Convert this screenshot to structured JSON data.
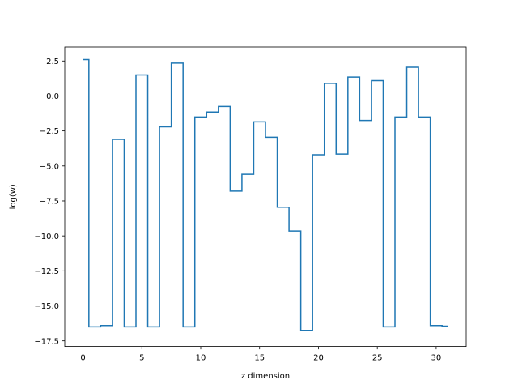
{
  "chart_data": {
    "type": "line",
    "drawstyle": "steps-mid",
    "title": "",
    "xlabel": "z dimension",
    "ylabel": "log(w)",
    "xlim": [
      -1.55,
      32.55
    ],
    "ylim": [
      -17.9,
      3.5
    ],
    "xticks": [
      0,
      5,
      10,
      15,
      20,
      25,
      30
    ],
    "xtick_labels": [
      "0",
      "5",
      "10",
      "15",
      "20",
      "25",
      "30"
    ],
    "yticks": [
      2.5,
      0.0,
      -2.5,
      -5.0,
      -7.5,
      -10.0,
      -12.5,
      -15.0,
      -17.5
    ],
    "ytick_labels": [
      "2.5",
      "0.0",
      "−2.5",
      "−5.0",
      "−7.5",
      "−10.0",
      "−12.5",
      "−15.0",
      "−17.5"
    ],
    "grid": false,
    "legend": "none",
    "series": [
      {
        "color": "#1f77b4",
        "x": [
          0,
          1,
          2,
          3,
          4,
          5,
          6,
          7,
          8,
          9,
          10,
          11,
          12,
          13,
          14,
          15,
          16,
          17,
          18,
          19,
          20,
          21,
          22,
          23,
          24,
          25,
          26,
          27,
          28,
          29,
          30,
          31
        ],
        "values": [
          2.6,
          -16.5,
          -16.4,
          -3.1,
          -16.5,
          1.5,
          -16.5,
          -2.2,
          2.35,
          -16.5,
          -1.5,
          -1.15,
          -0.75,
          -6.8,
          -5.6,
          -1.85,
          -2.95,
          -7.95,
          -9.65,
          -16.75,
          -4.2,
          0.9,
          -4.15,
          1.35,
          -1.75,
          1.1,
          -16.5,
          -1.5,
          2.05,
          -1.5,
          -16.4,
          -16.45
        ]
      }
    ]
  }
}
